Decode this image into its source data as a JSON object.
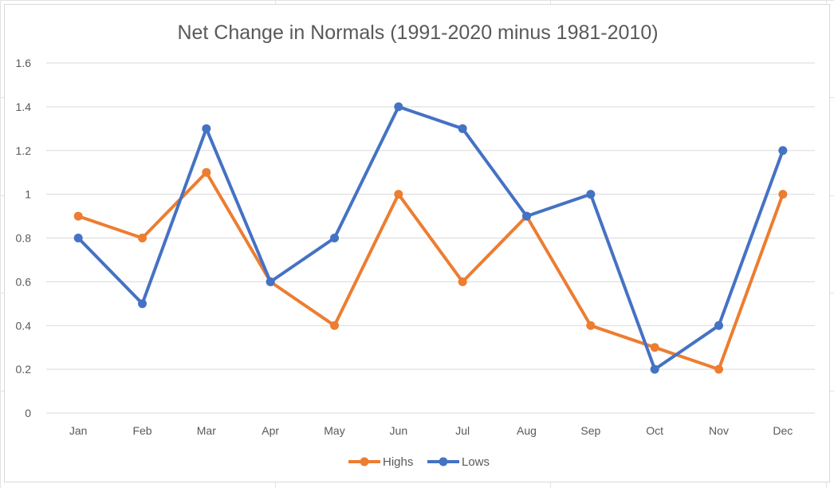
{
  "chart_data": {
    "type": "line",
    "title": "Net Change in Normals (1991-2020 minus 1981-2010)",
    "xlabel": "",
    "ylabel": "",
    "categories": [
      "Jan",
      "Feb",
      "Mar",
      "Apr",
      "May",
      "Jun",
      "Jul",
      "Aug",
      "Sep",
      "Oct",
      "Nov",
      "Dec"
    ],
    "ylim": [
      0,
      1.6
    ],
    "yticks": [
      "0",
      "0.2",
      "0.4",
      "0.6",
      "0.8",
      "1",
      "1.2",
      "1.4",
      "1.6"
    ],
    "grid": true,
    "legend_position": "bottom",
    "series": [
      {
        "name": "Highs",
        "color": "#ED7D31",
        "values": [
          0.9,
          0.8,
          1.1,
          0.6,
          0.4,
          1.0,
          0.6,
          0.9,
          0.4,
          0.3,
          0.2,
          1.0
        ]
      },
      {
        "name": "Lows",
        "color": "#4472C4",
        "values": [
          0.8,
          0.5,
          1.3,
          0.6,
          0.8,
          1.4,
          1.3,
          0.9,
          1.0,
          0.2,
          0.4,
          1.2
        ]
      }
    ]
  }
}
